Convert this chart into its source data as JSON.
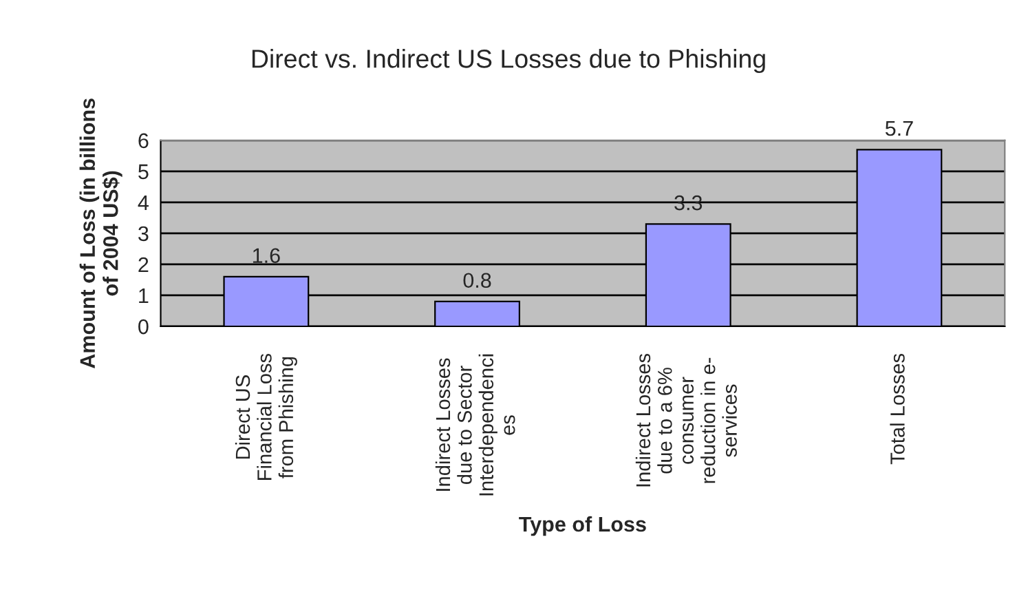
{
  "chart_data": {
    "type": "bar",
    "title": "Direct vs. Indirect US Losses due to Phishing",
    "xlabel": "Type of Loss",
    "ylabel": "Amount of Loss (in billions\nof 2004 US$)",
    "categories": [
      "Direct US\nFinancial Loss\nfrom Phishing",
      "Indirect Losses\ndue to Sector\nInterdependenci\nes",
      "Indirect Losses\ndue to a 6%\nconsumer\nreduction in e-\nservices",
      "Total Losses"
    ],
    "values": [
      1.6,
      0.8,
      3.3,
      5.7
    ],
    "color": "#9999ff",
    "data_labels": true,
    "ylim": [
      0,
      6
    ],
    "yticks": [
      0,
      1,
      2,
      3,
      4,
      5,
      6
    ],
    "grid": "y"
  }
}
